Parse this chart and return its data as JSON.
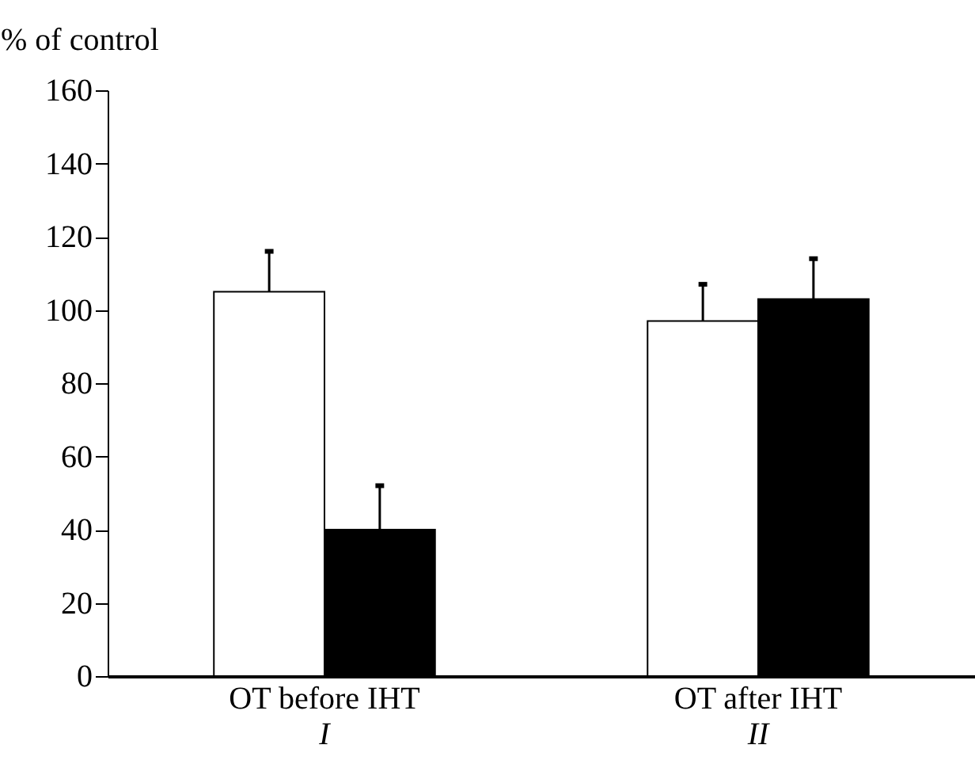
{
  "chart_data": {
    "type": "bar",
    "ylabel": "% of control",
    "categories": [
      "OT before IHT",
      "OT after IHT"
    ],
    "series": [
      {
        "color": "#ffffff",
        "values": [
          105,
          97
        ],
        "errors": [
          [
            105,
            116
          ],
          [
            97,
            107
          ]
        ]
      },
      {
        "color": "#000000",
        "values": [
          40,
          103
        ],
        "errors": [
          [
            40,
            52
          ],
          [
            103,
            114
          ]
        ]
      }
    ],
    "ylim": [
      0,
      160
    ],
    "yticks": [
      0,
      20,
      40,
      60,
      80,
      100,
      120,
      140,
      160
    ],
    "annotations": [
      "I",
      "II"
    ],
    "grid": false,
    "legend": false
  }
}
